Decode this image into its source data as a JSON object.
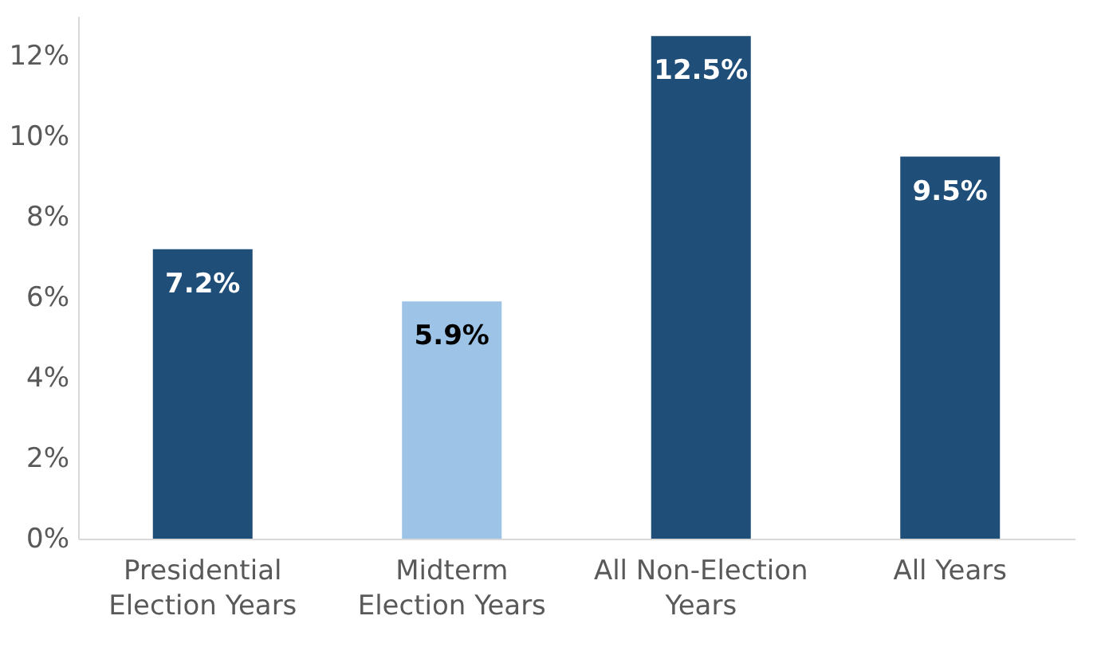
{
  "chart_data": {
    "type": "bar",
    "categories": [
      "Presidential Election Years",
      "Midterm Election Years",
      "All Non-Election Years",
      "All Years"
    ],
    "values": [
      7.2,
      5.9,
      12.5,
      9.5
    ],
    "colors": [
      "#1f4e79",
      "#9dc3e6",
      "#1f4e79",
      "#1f4e79"
    ],
    "value_labels": [
      "7.2%",
      "5.9%",
      "12.5%",
      "9.5%"
    ],
    "ylim": [
      0,
      13
    ],
    "yticks": [
      {
        "value": 0,
        "label": "0%"
      },
      {
        "value": 2,
        "label": "2%"
      },
      {
        "value": 4,
        "label": "4%"
      },
      {
        "value": 6,
        "label": "6%"
      },
      {
        "value": 8,
        "label": "8%"
      },
      {
        "value": 10,
        "label": "10%"
      },
      {
        "value": 12,
        "label": "12%"
      }
    ],
    "grid": false
  }
}
